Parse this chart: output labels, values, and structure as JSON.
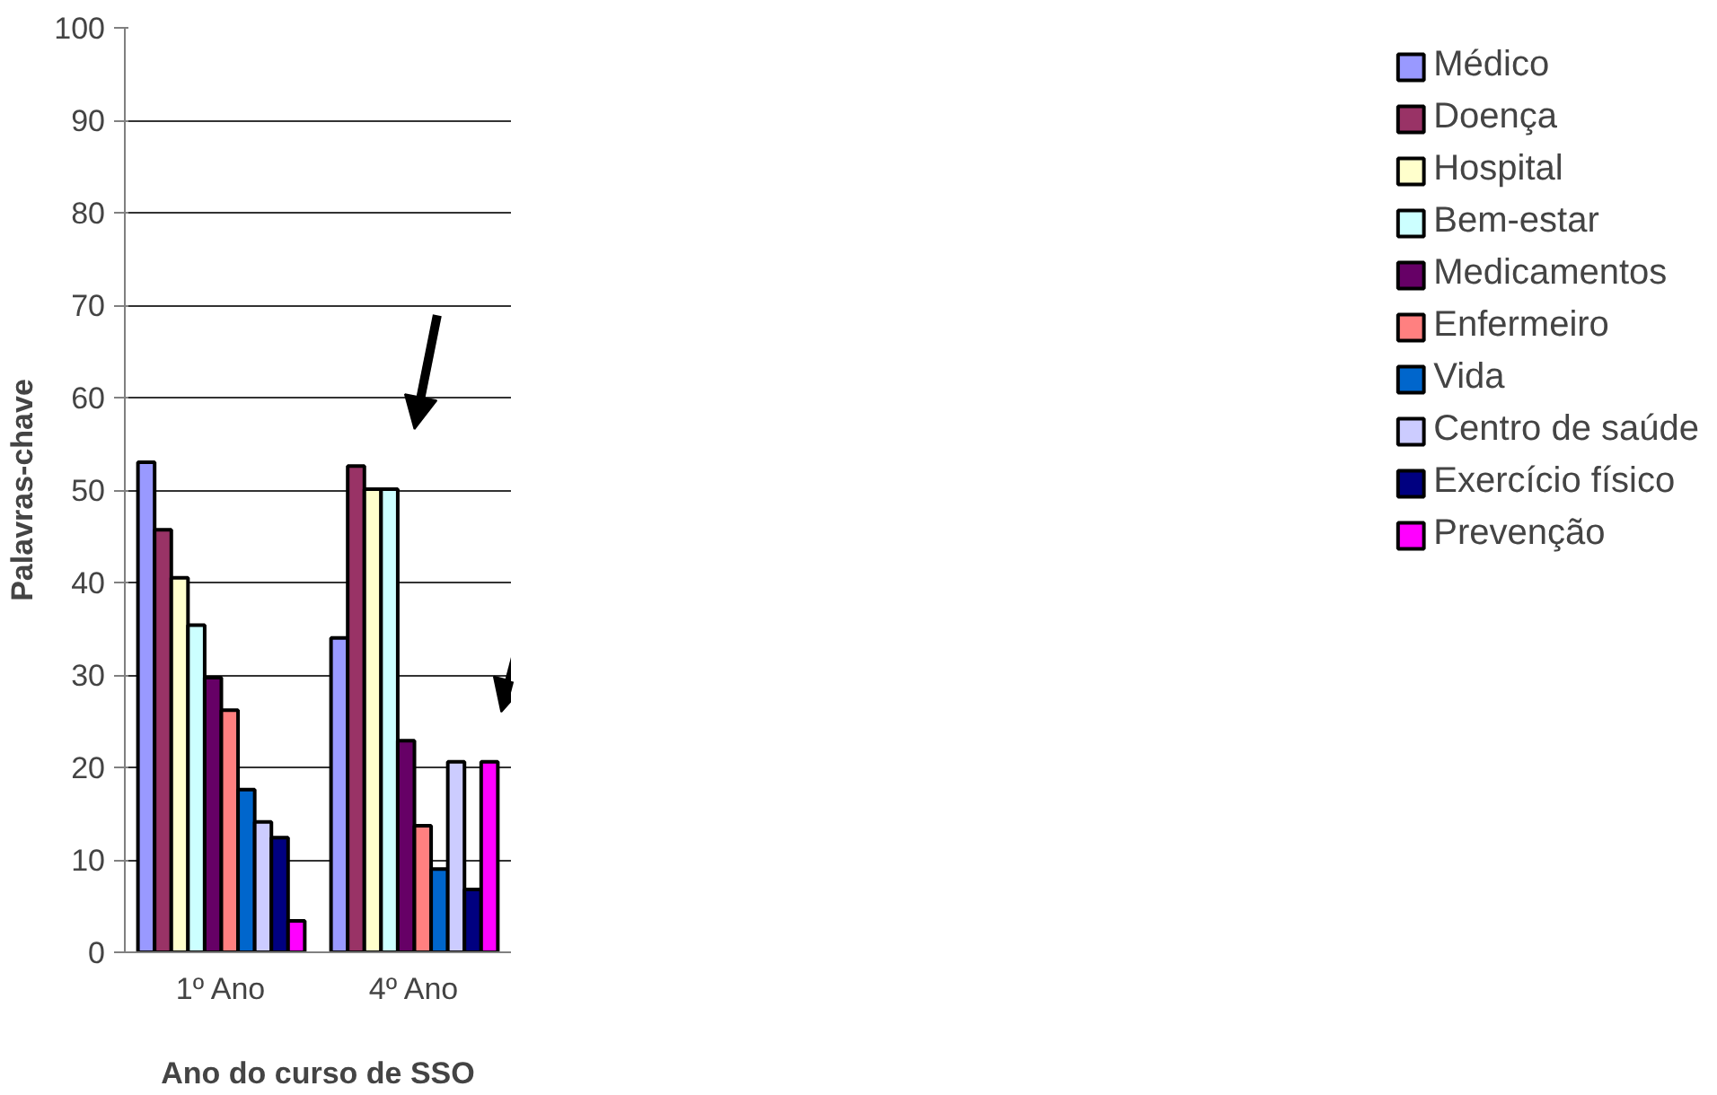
{
  "chart_data": {
    "type": "bar",
    "xlabel": "Ano do curso de SSO",
    "ylabel": "Palavras-chave",
    "categories": [
      "1º Ano",
      "4º Ano"
    ],
    "series": [
      {
        "name": "Médico",
        "color": "#9999ff",
        "values": [
          53.0,
          34.0
        ]
      },
      {
        "name": "Doença",
        "color": "#993366",
        "values": [
          45.7,
          52.6
        ]
      },
      {
        "name": "Hospital",
        "color": "#ffffcc",
        "values": [
          40.5,
          50.1
        ]
      },
      {
        "name": "Bem-estar",
        "color": "#ccffff",
        "values": [
          35.4,
          50.1
        ]
      },
      {
        "name": "Medicamentos",
        "color": "#660066",
        "values": [
          29.7,
          22.9
        ]
      },
      {
        "name": "Enfermeiro",
        "color": "#ff8080",
        "values": [
          26.2,
          13.7
        ]
      },
      {
        "name": "Vida",
        "color": "#0066cc",
        "values": [
          17.6,
          9.0
        ]
      },
      {
        "name": "Centro de saúde",
        "color": "#ccccff",
        "values": [
          14.1,
          20.6
        ]
      },
      {
        "name": "Exercício físico",
        "color": "#000080",
        "values": [
          12.4,
          6.8
        ]
      },
      {
        "name": "Prevenção",
        "color": "#ff00ff",
        "values": [
          3.4,
          20.6
        ]
      }
    ],
    "ylim": [
      0,
      100
    ],
    "yticks": [
      0,
      10,
      20,
      30,
      40,
      50,
      60,
      70,
      80,
      90,
      100
    ],
    "grid": "y",
    "legend": "right"
  }
}
